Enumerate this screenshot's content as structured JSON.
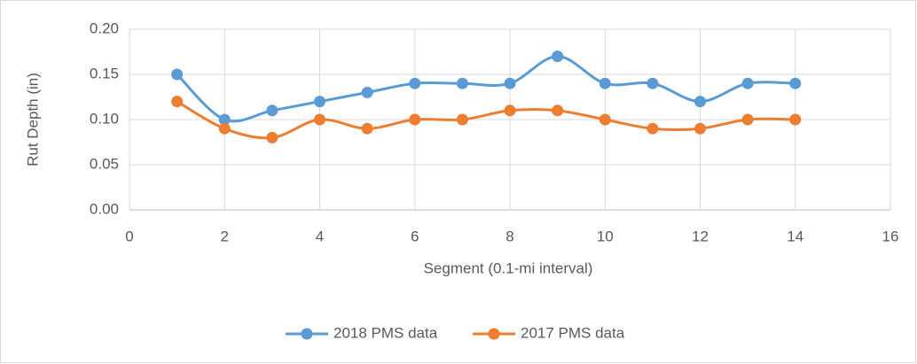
{
  "chart_data": {
    "type": "line",
    "x": [
      1,
      2,
      3,
      4,
      5,
      6,
      7,
      8,
      9,
      10,
      11,
      12,
      13,
      14
    ],
    "series": [
      {
        "name": "2018 PMS data",
        "color": "#5b9bd5",
        "values": [
          0.15,
          0.1,
          0.11,
          0.12,
          0.13,
          0.14,
          0.14,
          0.14,
          0.17,
          0.14,
          0.14,
          0.12,
          0.14,
          0.14
        ]
      },
      {
        "name": "2017 PMS data",
        "color": "#ed7d31",
        "values": [
          0.12,
          0.09,
          0.08,
          0.1,
          0.09,
          0.1,
          0.1,
          0.11,
          0.11,
          0.1,
          0.09,
          0.09,
          0.1,
          0.1
        ]
      }
    ],
    "xlabel": "Segment (0.1-mi interval)",
    "ylabel": "Rut Depth (in)",
    "xlim": [
      0,
      16
    ],
    "xticks": [
      0,
      2,
      4,
      6,
      8,
      10,
      12,
      14,
      16
    ],
    "ylim": [
      0,
      0.2
    ],
    "yticks": [
      {
        "value": 0,
        "label": "0.00"
      },
      {
        "value": 0.05,
        "label": "0.05"
      },
      {
        "value": 0.1,
        "label": "0.10"
      },
      {
        "value": 0.15,
        "label": "0.15"
      },
      {
        "value": 0.2,
        "label": "0.20"
      }
    ],
    "grid": true,
    "smooth": true,
    "legend": "bottom"
  }
}
